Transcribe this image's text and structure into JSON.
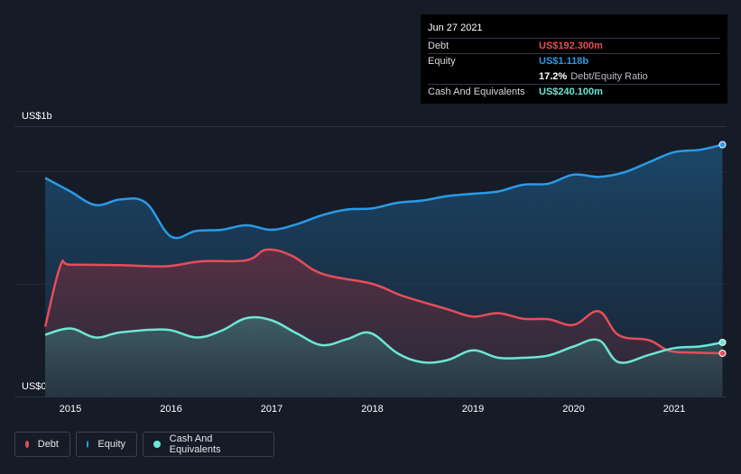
{
  "chart_data": {
    "type": "area",
    "ylim": [
      0,
      1.2
    ],
    "y_tick_labels": {
      "top": "US$1b",
      "bottom": "US$0"
    },
    "x_ticks": [
      2015,
      2016,
      2017,
      2018,
      2019,
      2020,
      2021
    ],
    "grid": true,
    "legend_position": "bottom-left",
    "series": [
      {
        "name": "Debt",
        "color": "#e64d5b",
        "x": [
          2014.75,
          2014.9,
          2015.0,
          2015.5,
          2015.95,
          2016.3,
          2016.75,
          2016.95,
          2017.2,
          2017.5,
          2018.0,
          2018.3,
          2018.75,
          2019.0,
          2019.25,
          2019.5,
          2019.75,
          2020.0,
          2020.25,
          2020.45,
          2020.75,
          2020.95,
          2021.2,
          2021.48
        ],
        "y": [
          0.31,
          0.58,
          0.585,
          0.583,
          0.578,
          0.6,
          0.605,
          0.652,
          0.625,
          0.545,
          0.5,
          0.447,
          0.387,
          0.355,
          0.37,
          0.345,
          0.343,
          0.318,
          0.378,
          0.272,
          0.25,
          0.203,
          0.195,
          0.192
        ]
      },
      {
        "name": "Equity",
        "color": "#2a9be6",
        "x": [
          2014.75,
          2015.0,
          2015.25,
          2015.5,
          2015.75,
          2016.0,
          2016.25,
          2016.5,
          2016.75,
          2017.0,
          2017.25,
          2017.5,
          2017.75,
          2018.0,
          2018.25,
          2018.5,
          2018.75,
          2019.0,
          2019.25,
          2019.5,
          2019.75,
          2020.0,
          2020.25,
          2020.5,
          2020.75,
          2021.0,
          2021.25,
          2021.48
        ],
        "y": [
          0.97,
          0.91,
          0.85,
          0.875,
          0.86,
          0.71,
          0.735,
          0.74,
          0.76,
          0.74,
          0.765,
          0.805,
          0.83,
          0.835,
          0.86,
          0.87,
          0.89,
          0.9,
          0.91,
          0.94,
          0.945,
          0.985,
          0.975,
          0.995,
          1.04,
          1.085,
          1.095,
          1.118
        ]
      },
      {
        "name": "Cash And Equivalents",
        "color": "#6ee6d3",
        "x": [
          2014.75,
          2015.0,
          2015.25,
          2015.5,
          2015.95,
          2016.25,
          2016.5,
          2016.75,
          2017.0,
          2017.25,
          2017.5,
          2017.75,
          2017.98,
          2018.25,
          2018.5,
          2018.75,
          2019.0,
          2019.25,
          2019.5,
          2019.75,
          2020.0,
          2020.25,
          2020.45,
          2020.75,
          2021.0,
          2021.25,
          2021.48
        ],
        "y": [
          0.274,
          0.302,
          0.262,
          0.285,
          0.297,
          0.262,
          0.292,
          0.348,
          0.338,
          0.28,
          0.228,
          0.255,
          0.282,
          0.192,
          0.152,
          0.162,
          0.205,
          0.172,
          0.172,
          0.182,
          0.222,
          0.25,
          0.152,
          0.185,
          0.215,
          0.222,
          0.2401
        ]
      }
    ]
  },
  "tooltip": {
    "date": "Jun 27 2021",
    "debt_label": "Debt",
    "debt_value": "US$192.300m",
    "equity_label": "Equity",
    "equity_value": "US$1.118b",
    "ratio_value": "17.2%",
    "ratio_label": "Debt/Equity Ratio",
    "cash_label": "Cash And Equivalents",
    "cash_value": "US$240.100m"
  },
  "legend": {
    "debt_label": "Debt",
    "equity_label": "Equity",
    "cash_label": "Cash And Equivalents"
  },
  "colors": {
    "debt": "#e64d5b",
    "equity": "#2a9be6",
    "cash": "#6ee6d3",
    "background": "#151b27"
  }
}
